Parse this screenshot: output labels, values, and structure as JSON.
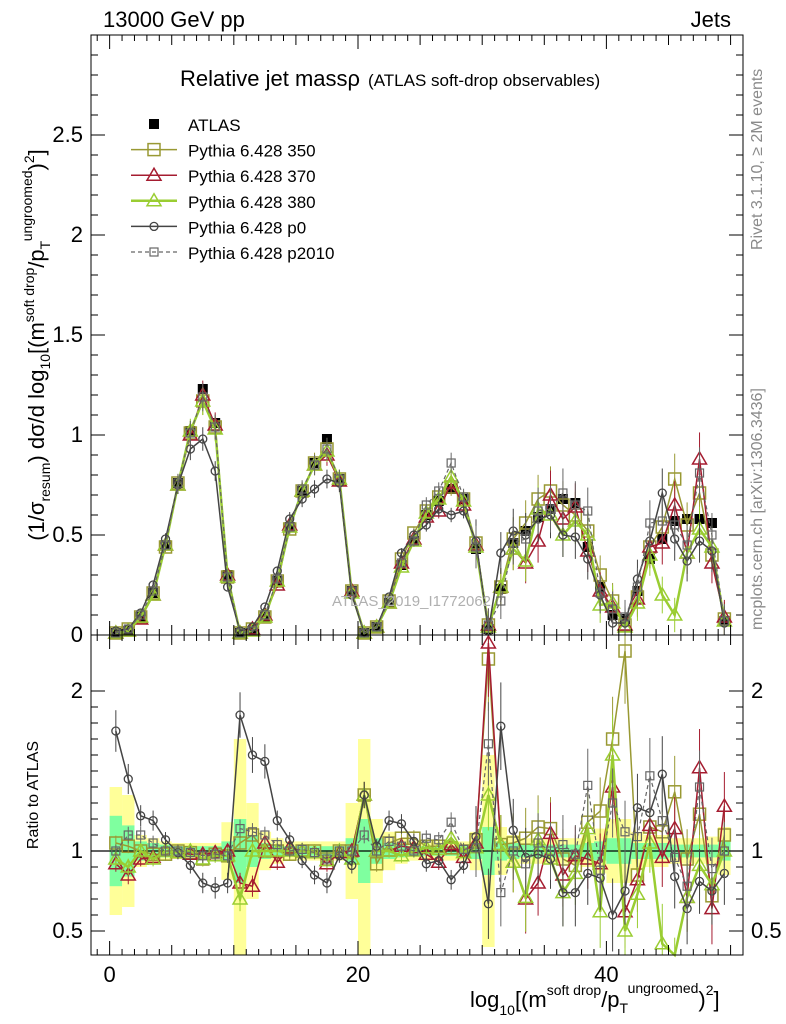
{
  "header": {
    "left": "13000 GeV pp",
    "right": "Jets"
  },
  "side_labels": {
    "rivet": "Rivet 3.1.10, ≥ 2M events",
    "mcplots": "mcplots.cern.ch [arXiv:1306.3436]"
  },
  "watermark": "ATLAS_2019_I1772062",
  "colors": {
    "ATLAS": "#000000",
    "p350": "#999933",
    "p370": "#a51c30",
    "p380": "#9acd32",
    "p0": "#444444",
    "p2010": "#666666",
    "band_outer": "#ffff99",
    "band_inner": "#7fff9f"
  },
  "chart_data": [
    {
      "type": "line",
      "title": "Relative jet massρ",
      "title_note": "(ATLAS soft-drop observables)",
      "ylabel": "(1/σresum) dσ/d log10[(m soft drop / pT ungroomed)2]",
      "ylim": [
        0,
        3
      ],
      "xlim": [
        -1.5,
        51
      ],
      "y_ticks": [
        "0",
        "0.5",
        "1",
        "1.5",
        "2",
        "2.5"
      ],
      "x": [
        0.5,
        1.5,
        2.5,
        3.5,
        4.5,
        5.5,
        6.5,
        7.5,
        8.5,
        9.5,
        10.5,
        11.5,
        12.5,
        13.5,
        14.5,
        15.5,
        16.5,
        17.5,
        18.5,
        19.5,
        20.5,
        21.5,
        22.5,
        23.5,
        24.5,
        25.5,
        26.5,
        27.5,
        28.5,
        29.5,
        30.5,
        31.5,
        32.5,
        33.5,
        34.5,
        35.5,
        36.5,
        37.5,
        38.5,
        39.5,
        40.5,
        41.5,
        42.5,
        43.5,
        44.5,
        45.5,
        46.5,
        47.5,
        48.5,
        49.5
      ],
      "series": [
        {
          "name": "ATLAS",
          "values": [
            0.01,
            0.02,
            0.09,
            0.21,
            0.45,
            0.76,
            1.02,
            1.23,
            1.06,
            0.3,
            0.01,
            0.02,
            0.09,
            0.27,
            0.54,
            0.72,
            0.86,
            0.98,
            0.78,
            0.22,
            0.01,
            0.04,
            0.16,
            0.35,
            0.47,
            0.6,
            0.67,
            0.73,
            0.68,
            0.43,
            0.03,
            0.23,
            0.46,
            0.52,
            0.59,
            0.63,
            0.68,
            0.66,
            0.44,
            0.24,
            0.1,
            0.08,
            0.22,
            0.38,
            0.48,
            0.57,
            0.58,
            0.58,
            0.56,
            0.07
          ]
        },
        {
          "name": "Pythia 6.428 350",
          "values": [
            0.01,
            0.03,
            0.09,
            0.21,
            0.44,
            0.76,
            1.01,
            1.17,
            1.04,
            0.29,
            0.01,
            0.03,
            0.09,
            0.27,
            0.53,
            0.72,
            0.86,
            0.93,
            0.78,
            0.22,
            0.01,
            0.04,
            0.17,
            0.38,
            0.51,
            0.62,
            0.69,
            0.74,
            0.68,
            0.46,
            0.05,
            0.24,
            0.48,
            0.56,
            0.68,
            0.72,
            0.65,
            0.6,
            0.52,
            0.3,
            0.17,
            0.05,
            0.19,
            0.44,
            0.54,
            0.78,
            0.55,
            0.71,
            0.4,
            0.08
          ]
        },
        {
          "name": "Pythia 6.428 370",
          "values": [
            0.01,
            0.02,
            0.08,
            0.2,
            0.45,
            0.75,
            1.0,
            1.2,
            1.05,
            0.3,
            0.01,
            0.03,
            0.1,
            0.25,
            0.55,
            0.72,
            0.85,
            0.9,
            0.77,
            0.22,
            0.01,
            0.04,
            0.16,
            0.36,
            0.48,
            0.59,
            0.62,
            0.76,
            0.65,
            0.45,
            0.05,
            0.24,
            0.43,
            0.36,
            0.47,
            0.7,
            0.58,
            0.64,
            0.42,
            0.22,
            0.14,
            0.05,
            0.18,
            0.44,
            0.46,
            0.65,
            0.41,
            0.88,
            0.36,
            0.09
          ]
        },
        {
          "name": "Pythia 6.428 380",
          "values": [
            0.01,
            0.02,
            0.09,
            0.2,
            0.45,
            0.75,
            1.02,
            1.17,
            1.03,
            0.29,
            0.01,
            0.02,
            0.09,
            0.27,
            0.54,
            0.72,
            0.85,
            0.92,
            0.78,
            0.21,
            0.01,
            0.04,
            0.16,
            0.34,
            0.47,
            0.61,
            0.68,
            0.79,
            0.67,
            0.44,
            0.04,
            0.24,
            0.43,
            0.37,
            0.63,
            0.6,
            0.5,
            0.57,
            0.5,
            0.15,
            0.16,
            0.04,
            0.16,
            0.4,
            0.2,
            0.1,
            0.41,
            0.53,
            0.44,
            0.07
          ]
        },
        {
          "name": "Pythia 6.428 p0",
          "values": [
            0.02,
            0.03,
            0.11,
            0.25,
            0.48,
            0.75,
            0.93,
            0.98,
            0.82,
            0.24,
            0.02,
            0.04,
            0.14,
            0.32,
            0.58,
            0.68,
            0.73,
            0.78,
            0.76,
            0.2,
            0.01,
            0.04,
            0.19,
            0.41,
            0.5,
            0.55,
            0.63,
            0.6,
            0.62,
            0.47,
            0.02,
            0.41,
            0.52,
            0.5,
            0.58,
            0.6,
            0.5,
            0.49,
            0.38,
            0.2,
            0.06,
            0.06,
            0.28,
            0.47,
            0.71,
            0.48,
            0.37,
            0.47,
            0.42,
            0.06
          ]
        },
        {
          "name": "Pythia 6.428 p2010",
          "values": [
            0.01,
            0.03,
            0.1,
            0.22,
            0.45,
            0.76,
            1.01,
            1.19,
            1.04,
            0.29,
            0.01,
            0.02,
            0.1,
            0.28,
            0.54,
            0.73,
            0.85,
            0.93,
            0.78,
            0.22,
            0.01,
            0.04,
            0.17,
            0.36,
            0.47,
            0.65,
            0.72,
            0.86,
            0.69,
            0.44,
            0.05,
            0.17,
            0.46,
            0.48,
            0.62,
            0.63,
            0.71,
            0.65,
            0.62,
            0.21,
            0.13,
            0.09,
            0.24,
            0.56,
            0.57,
            0.55,
            0.45,
            0.81,
            0.5,
            0.07
          ]
        }
      ]
    },
    {
      "type": "line",
      "ylabel": "Ratio to ATLAS",
      "xlabel": "log10[(m soft drop / pT ungroomed)2]",
      "ylim": [
        0.35,
        2.35
      ],
      "xlim": [
        -1.5,
        51
      ],
      "x_ticks": [
        "0",
        "20",
        "40"
      ],
      "y_ticks": [
        "0.5",
        "1",
        "2"
      ],
      "x": [
        0.5,
        1.5,
        2.5,
        3.5,
        4.5,
        5.5,
        6.5,
        7.5,
        8.5,
        9.5,
        10.5,
        11.5,
        12.5,
        13.5,
        14.5,
        15.5,
        16.5,
        17.5,
        18.5,
        19.5,
        20.5,
        21.5,
        22.5,
        23.5,
        24.5,
        25.5,
        26.5,
        27.5,
        28.5,
        29.5,
        30.5,
        31.5,
        32.5,
        33.5,
        34.5,
        35.5,
        36.5,
        37.5,
        38.5,
        39.5,
        40.5,
        41.5,
        42.5,
        43.5,
        44.5,
        45.5,
        46.5,
        47.5,
        48.5,
        49.5
      ],
      "band_outer": [
        0.4,
        0.35,
        0.1,
        0.08,
        0.06,
        0.05,
        0.05,
        0.05,
        0.05,
        0.18,
        0.7,
        0.3,
        0.12,
        0.08,
        0.06,
        0.06,
        0.06,
        0.06,
        0.06,
        0.3,
        0.7,
        0.2,
        0.12,
        0.08,
        0.06,
        0.06,
        0.06,
        0.06,
        0.06,
        0.12,
        0.6,
        0.15,
        0.1,
        0.08,
        0.08,
        0.08,
        0.08,
        0.08,
        0.1,
        0.14,
        0.2,
        0.2,
        0.12,
        0.1,
        0.1,
        0.08,
        0.08,
        0.08,
        0.09,
        0.15
      ],
      "band_inner": [
        0.22,
        0.16,
        0.06,
        0.05,
        0.04,
        0.03,
        0.03,
        0.03,
        0.03,
        0.06,
        0.2,
        0.1,
        0.05,
        0.04,
        0.03,
        0.03,
        0.03,
        0.03,
        0.03,
        0.08,
        0.2,
        0.08,
        0.05,
        0.04,
        0.03,
        0.03,
        0.03,
        0.03,
        0.03,
        0.05,
        0.15,
        0.06,
        0.05,
        0.04,
        0.04,
        0.04,
        0.04,
        0.04,
        0.05,
        0.06,
        0.08,
        0.08,
        0.05,
        0.05,
        0.05,
        0.04,
        0.04,
        0.04,
        0.04,
        0.06
      ],
      "series": [
        {
          "name": "Pythia 6.428 350",
          "values": [
            1.05,
            1.03,
            1.0,
            0.98,
            0.98,
            1.0,
            0.99,
            0.95,
            0.98,
            0.97,
            1.05,
            1.1,
            1.0,
            1.0,
            0.98,
            1.0,
            1.0,
            0.95,
            1.0,
            1.0,
            1.35,
            0.92,
            1.05,
            1.08,
            1.08,
            1.03,
            1.03,
            1.02,
            1.0,
            1.07,
            2.2,
            1.04,
            1.05,
            1.08,
            1.15,
            1.14,
            0.95,
            0.91,
            1.18,
            1.25,
            1.7,
            2.25,
            0.85,
            1.15,
            1.12,
            1.37,
            0.95,
            1.23,
            0.72,
            1.1
          ]
        },
        {
          "name": "Pythia 6.428 370",
          "values": [
            0.92,
            0.85,
            0.95,
            0.96,
            1.0,
            0.99,
            0.98,
            0.98,
            0.99,
            1.0,
            0.8,
            0.78,
            1.05,
            0.93,
            1.02,
            1.0,
            0.99,
            0.92,
            0.99,
            1.0,
            1.35,
            1.0,
            1.0,
            1.03,
            1.02,
            0.98,
            0.93,
            1.04,
            0.96,
            1.05,
            2.3,
            1.04,
            0.93,
            0.7,
            0.8,
            1.11,
            0.85,
            0.97,
            0.95,
            0.92,
            1.4,
            0.62,
            0.82,
            1.16,
            0.96,
            1.14,
            0.71,
            1.52,
            0.64,
            1.28
          ]
        },
        {
          "name": "Pythia 6.428 380",
          "values": [
            0.95,
            0.9,
            1.0,
            0.95,
            1.0,
            0.99,
            1.0,
            0.95,
            0.97,
            0.97,
            0.7,
            1.0,
            1.0,
            1.0,
            1.0,
            1.0,
            0.99,
            0.94,
            1.0,
            0.95,
            1.35,
            1.0,
            1.0,
            0.97,
            1.0,
            1.02,
            1.01,
            1.08,
            0.99,
            1.02,
            1.35,
            1.04,
            0.93,
            0.71,
            1.07,
            0.95,
            0.74,
            0.86,
            1.14,
            0.62,
            1.6,
            0.5,
            0.73,
            1.05,
            0.42,
            0.18,
            0.71,
            0.91,
            0.79,
            1.0
          ]
        },
        {
          "name": "Pythia 6.428 p0",
          "values": [
            1.75,
            1.45,
            1.22,
            1.19,
            1.07,
            0.99,
            0.91,
            0.8,
            0.77,
            0.8,
            1.85,
            1.6,
            1.56,
            1.19,
            1.07,
            0.94,
            0.85,
            0.8,
            0.97,
            0.91,
            1.35,
            1.03,
            1.19,
            1.17,
            1.06,
            0.92,
            0.94,
            0.82,
            0.91,
            1.09,
            0.67,
            1.78,
            1.13,
            0.96,
            0.98,
            0.95,
            0.74,
            0.74,
            0.86,
            0.83,
            0.6,
            0.75,
            1.27,
            1.24,
            1.48,
            0.84,
            0.64,
            0.81,
            0.75,
            0.86
          ]
        },
        {
          "name": "Pythia 6.428 p2010",
          "values": [
            1.0,
            1.1,
            1.1,
            1.05,
            1.0,
            1.0,
            0.99,
            0.97,
            0.98,
            0.97,
            1.14,
            1.12,
            1.1,
            1.04,
            1.0,
            1.01,
            0.99,
            0.95,
            1.0,
            1.0,
            1.1,
            1.0,
            1.06,
            1.03,
            1.0,
            1.08,
            1.07,
            1.18,
            1.01,
            1.02,
            1.67,
            0.74,
            1.0,
            0.92,
            1.05,
            1.0,
            1.04,
            0.98,
            1.41,
            0.88,
            1.3,
            1.12,
            1.09,
            1.47,
            1.19,
            0.96,
            0.78,
            1.4,
            0.89,
            1.0
          ]
        }
      ]
    }
  ],
  "legend": {
    "ATLAS": "ATLAS",
    "p350": "Pythia 6.428 350",
    "p370": "Pythia 6.428 370",
    "p380": "Pythia 6.428 380",
    "p0": "Pythia 6.428 p0",
    "p2010": "Pythia 6.428 p2010"
  }
}
